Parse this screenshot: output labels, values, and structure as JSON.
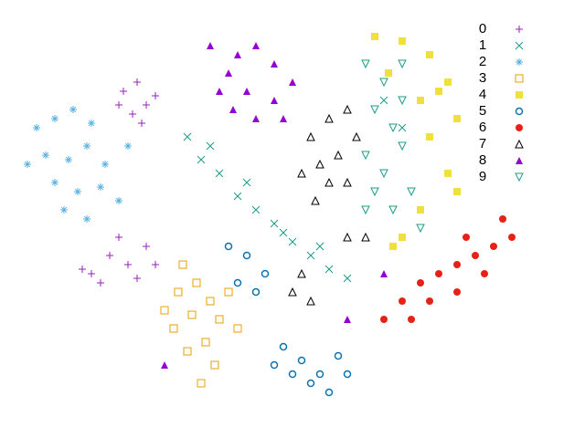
{
  "chart_data": {
    "type": "scatter",
    "xlim": [
      0,
      640
    ],
    "ylim": [
      0,
      480
    ],
    "legend": "upper right",
    "series": [
      {
        "name": "0",
        "color": "#9a1fc0",
        "marker": "plus",
        "x": [
          135,
          150,
          160,
          145,
          170,
          155,
          130,
          100,
          120,
          140,
          160,
          110,
          150,
          170,
          130,
          90
        ],
        "y": [
          380,
          390,
          365,
          355,
          375,
          345,
          365,
          180,
          200,
          190,
          210,
          170,
          175,
          190,
          220,
          185
        ]
      },
      {
        "name": "1",
        "color": "#1a9c86",
        "marker": "cross",
        "x": [
          205,
          220,
          240,
          260,
          280,
          300,
          320,
          340,
          360,
          380,
          230,
          270,
          310,
          350,
          420,
          440
        ],
        "y": [
          330,
          305,
          290,
          265,
          250,
          235,
          215,
          200,
          185,
          175,
          320,
          280,
          225,
          210,
          370,
          340
        ]
      },
      {
        "name": "2",
        "color": "#56b0e0",
        "marker": "star",
        "x": [
          40,
          60,
          80,
          100,
          50,
          75,
          95,
          115,
          60,
          85,
          110,
          130,
          70,
          95,
          140,
          30
        ],
        "y": [
          340,
          350,
          360,
          345,
          310,
          305,
          320,
          300,
          280,
          270,
          275,
          260,
          250,
          240,
          320,
          300
        ]
      },
      {
        "name": "3",
        "color": "#e5a000",
        "marker": "square",
        "x": [
          200,
          215,
          230,
          210,
          240,
          190,
          225,
          250,
          205,
          180,
          260,
          235,
          195,
          220
        ],
        "y": [
          190,
          170,
          150,
          135,
          130,
          120,
          105,
          160,
          95,
          140,
          120,
          80,
          160,
          60
        ]
      },
      {
        "name": "4",
        "color": "#f0e03c",
        "marker": "filled-square",
        "x": [
          410,
          440,
          470,
          490,
          460,
          500,
          470,
          490,
          500,
          460,
          440,
          430,
          480,
          425
        ],
        "y": [
          440,
          435,
          420,
          390,
          370,
          350,
          330,
          290,
          270,
          250,
          220,
          210,
          380,
          400
        ]
      },
      {
        "name": "5",
        "color": "#0a72b0",
        "marker": "circle",
        "x": [
          250,
          270,
          290,
          260,
          280,
          310,
          330,
          350,
          340,
          370,
          320,
          300,
          360,
          380
        ],
        "y": [
          210,
          200,
          180,
          170,
          160,
          100,
          85,
          70,
          60,
          90,
          70,
          80,
          50,
          70
        ]
      },
      {
        "name": "6",
        "color": "#e52218",
        "marker": "filled-circle",
        "x": [
          440,
          460,
          480,
          500,
          520,
          540,
          560,
          470,
          500,
          530,
          450,
          510,
          550,
          420
        ],
        "y": [
          150,
          170,
          180,
          190,
          200,
          210,
          220,
          150,
          160,
          180,
          130,
          220,
          240,
          130
        ]
      },
      {
        "name": "7",
        "color": "#000000",
        "marker": "triangle",
        "x": [
          340,
          360,
          380,
          350,
          370,
          390,
          330,
          360,
          345,
          380,
          320,
          340,
          330,
          400,
          380
        ],
        "y": [
          330,
          350,
          360,
          300,
          310,
          330,
          290,
          280,
          260,
          280,
          160,
          150,
          180,
          220,
          220
        ]
      },
      {
        "name": "8",
        "color": "#9400d3",
        "marker": "filled-triangle",
        "x": [
          230,
          260,
          280,
          300,
          250,
          270,
          300,
          320,
          240,
          280,
          310,
          255,
          180,
          420,
          380
        ],
        "y": [
          430,
          420,
          430,
          410,
          400,
          380,
          370,
          390,
          380,
          350,
          350,
          360,
          80,
          180,
          130
        ]
      },
      {
        "name": "9",
        "color": "#1a9c86",
        "marker": "down-triangle",
        "x": [
          400,
          420,
          440,
          410,
          430,
          400,
          420,
          440,
          410,
          430,
          400,
          450,
          440,
          460
        ],
        "y": [
          410,
          390,
          410,
          360,
          340,
          310,
          290,
          320,
          270,
          250,
          250,
          270,
          370,
          230
        ]
      }
    ]
  }
}
